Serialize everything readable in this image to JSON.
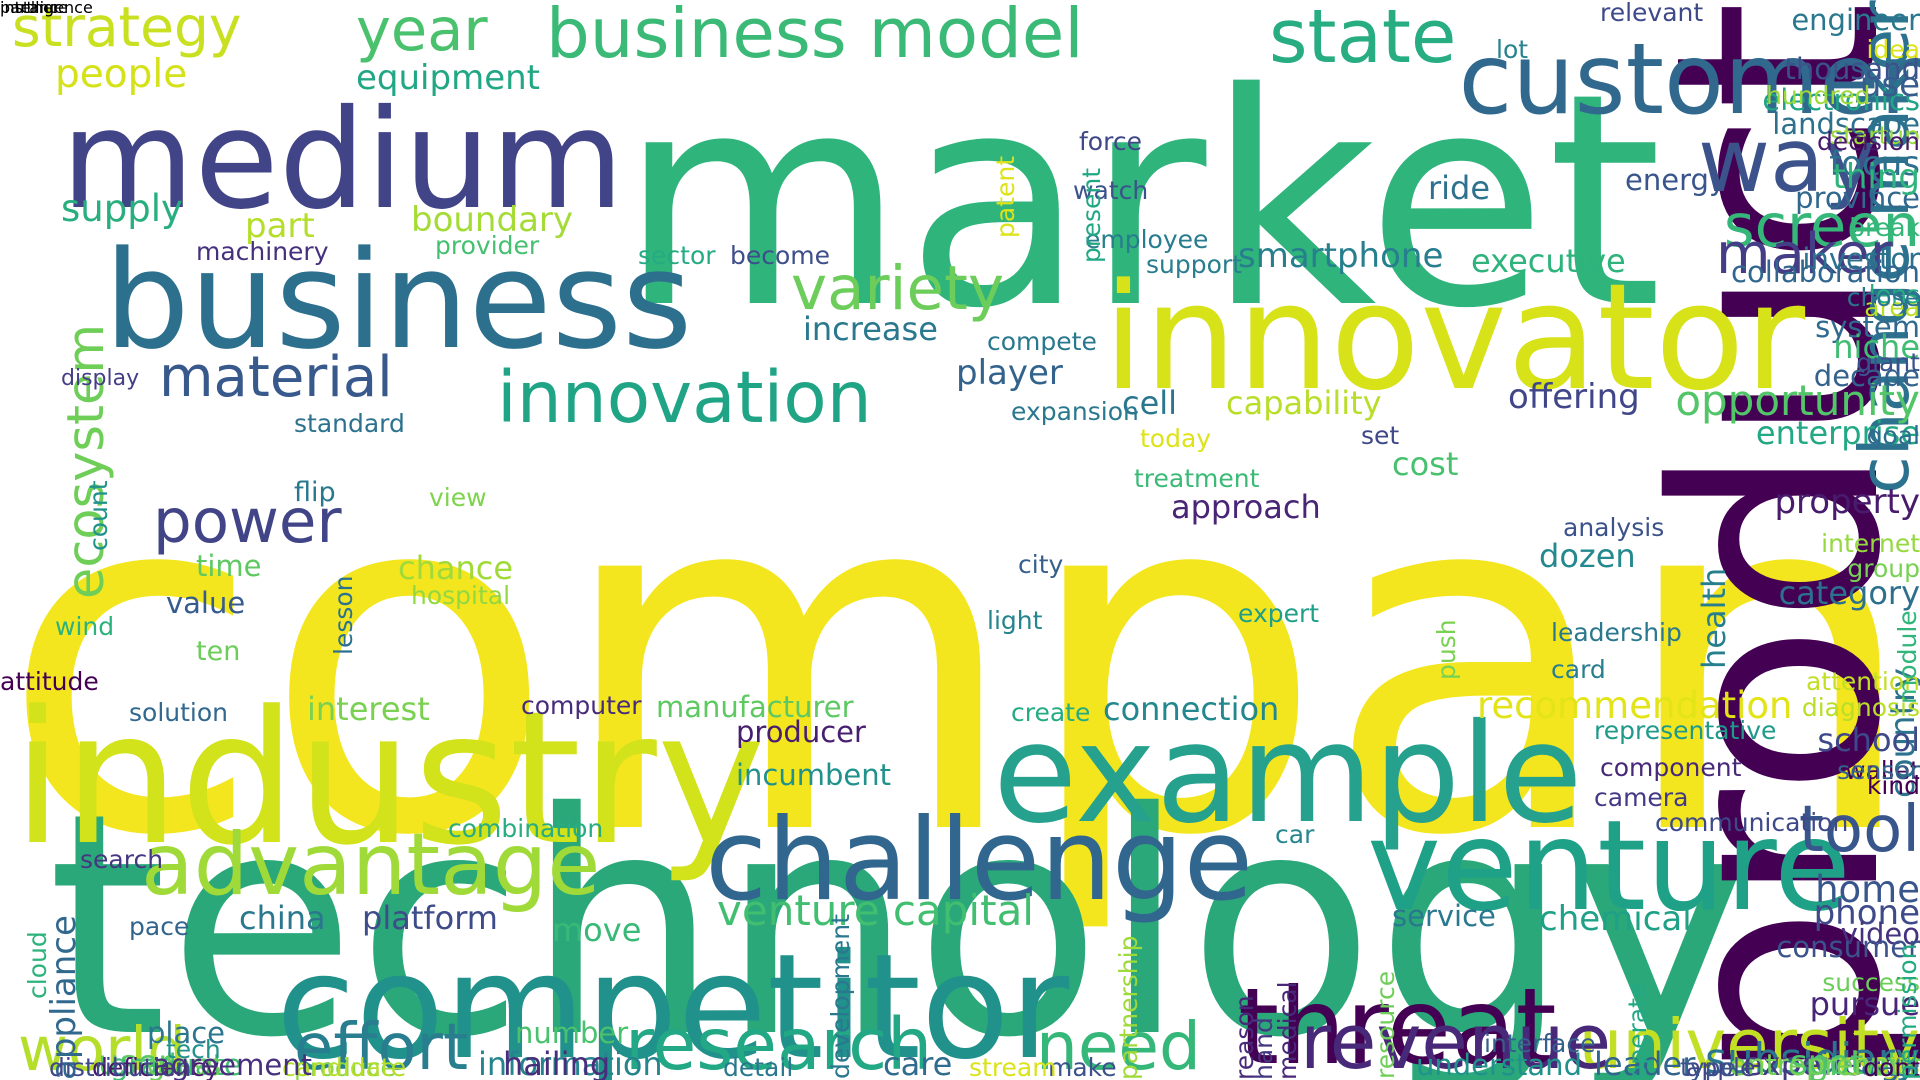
{
  "words": [
    {
      "text": "company",
      "color": "#f4e61e"
    },
    {
      "text": "market",
      "color": "#2fb47c"
    },
    {
      "text": "technology",
      "color": "#2aa879"
    },
    {
      "text": "product",
      "color": "#440154"
    },
    {
      "text": "industry",
      "color": "#d2e21b"
    },
    {
      "text": "innovator",
      "color": "#d8e219"
    },
    {
      "text": "business",
      "color": "#2d708e"
    },
    {
      "text": "medium",
      "color": "#414487"
    },
    {
      "text": "competitor",
      "color": "#21918c"
    },
    {
      "text": "example",
      "color": "#25a18e"
    },
    {
      "text": "venture",
      "color": "#1fa188"
    },
    {
      "text": "challenge",
      "color": "#31668e"
    },
    {
      "text": "customer",
      "color": "#31688e"
    },
    {
      "text": "threat",
      "color": "#440154"
    },
    {
      "text": "advantage",
      "color": "#a0da39"
    },
    {
      "text": "university",
      "color": "#c2df23"
    },
    {
      "text": "revenue",
      "color": "#482878"
    },
    {
      "text": "research",
      "color": "#22a884"
    },
    {
      "text": "change maker",
      "color": "#2c728e"
    },
    {
      "text": "way",
      "color": "#3b528b"
    },
    {
      "text": "innovation",
      "color": "#20a486"
    },
    {
      "text": "state",
      "color": "#27ad81"
    },
    {
      "text": "business model",
      "color": "#3aba76"
    },
    {
      "text": "strategy",
      "color": "#c8e020"
    },
    {
      "text": "year",
      "color": "#4ac16d"
    },
    {
      "text": "variety",
      "color": "#6ccd5a"
    },
    {
      "text": "material",
      "color": "#38598c"
    },
    {
      "text": "ecosystem",
      "color": "#6ece58"
    },
    {
      "text": "effort",
      "color": "#287d8e"
    },
    {
      "text": "world",
      "color": "#b5de2b"
    },
    {
      "text": "need",
      "color": "#35b779"
    },
    {
      "text": "tool",
      "color": "#39568c"
    },
    {
      "text": "screen",
      "color": "#35b779"
    },
    {
      "text": "maker",
      "color": "#433e85"
    },
    {
      "text": "power",
      "color": "#414487"
    },
    {
      "text": "venture capital",
      "color": "#42be71"
    },
    {
      "text": "opportunity",
      "color": "#52c569"
    },
    {
      "text": "subsidiary",
      "color": "#2a768e"
    },
    {
      "text": "people",
      "color": "#d5e21a"
    },
    {
      "text": "equipment",
      "color": "#22a785"
    },
    {
      "text": "supply",
      "color": "#29af7f"
    },
    {
      "text": "part",
      "color": "#b5de2b"
    },
    {
      "text": "boundary",
      "color": "#a5db36"
    },
    {
      "text": "machinery",
      "color": "#46307e"
    },
    {
      "text": "provider",
      "color": "#45bf70"
    },
    {
      "text": "increase",
      "color": "#2a788e"
    },
    {
      "text": "player",
      "color": "#33638d"
    },
    {
      "text": "cell",
      "color": "#2a768e"
    },
    {
      "text": "capability",
      "color": "#b8de29"
    },
    {
      "text": "offering",
      "color": "#404688"
    },
    {
      "text": "smartphone",
      "color": "#277f8e"
    },
    {
      "text": "executive",
      "color": "#2eb37c"
    },
    {
      "text": "focus",
      "color": "#2e6f8e"
    },
    {
      "text": "province",
      "color": "#31688e"
    },
    {
      "text": "energy",
      "color": "#39558c"
    },
    {
      "text": "ride",
      "color": "#2c718e"
    },
    {
      "text": "investor",
      "color": "#2c728e"
    },
    {
      "text": "collaboration",
      "color": "#31678e"
    },
    {
      "text": "landscape",
      "color": "#2d708e"
    },
    {
      "text": "electronics",
      "color": "#20a386"
    },
    {
      "text": "thousand",
      "color": "#3b528b"
    },
    {
      "text": "engineer",
      "color": "#2a788e"
    },
    {
      "text": "thing",
      "color": "#2fb47c"
    },
    {
      "text": "use",
      "color": "#365c8d"
    },
    {
      "text": "system",
      "color": "#306a8e"
    },
    {
      "text": "decade",
      "color": "#33638d"
    },
    {
      "text": "enterprise",
      "color": "#22a884"
    },
    {
      "text": "niche",
      "color": "#40bd72"
    },
    {
      "text": "property",
      "color": "#481b6d"
    },
    {
      "text": "category",
      "color": "#2d708e"
    },
    {
      "text": "approach",
      "color": "#482575"
    },
    {
      "text": "cost",
      "color": "#48c16e"
    },
    {
      "text": "dozen",
      "color": "#23898e"
    },
    {
      "text": "interest",
      "color": "#7ad151"
    },
    {
      "text": "manufacturer",
      "color": "#5ec962"
    },
    {
      "text": "connection",
      "color": "#23888e"
    },
    {
      "text": "recommendation",
      "color": "#e2e418"
    },
    {
      "text": "producer",
      "color": "#481f70"
    },
    {
      "text": "incumbent",
      "color": "#21918c"
    },
    {
      "text": "country",
      "color": "#2c738e"
    },
    {
      "text": "health",
      "color": "#277f8e"
    },
    {
      "text": "school",
      "color": "#3e4989"
    },
    {
      "text": "home",
      "color": "#39568c"
    },
    {
      "text": "phone",
      "color": "#3e4a89"
    },
    {
      "text": "video",
      "color": "#46337f"
    },
    {
      "text": "consumer",
      "color": "#3b528b"
    },
    {
      "text": "chemical",
      "color": "#1fa187"
    },
    {
      "text": "service",
      "color": "#2a788e"
    },
    {
      "text": "china",
      "color": "#2a788e"
    },
    {
      "text": "platform",
      "color": "#3e4c8a"
    },
    {
      "text": "move",
      "color": "#38b977"
    },
    {
      "text": "experience",
      "color": "#453882"
    },
    {
      "text": "pursue",
      "color": "#482576"
    },
    {
      "text": "image",
      "color": "#31668e"
    },
    {
      "text": "growth",
      "color": "#5ec962"
    },
    {
      "text": "thats",
      "color": "#c0df25"
    },
    {
      "text": "spot",
      "color": "#4ec36b"
    },
    {
      "text": "leader",
      "color": "#32658e"
    },
    {
      "text": "entrepreneur",
      "color": "#73d056"
    },
    {
      "text": "understand",
      "color": "#21918c"
    },
    {
      "text": "information",
      "color": "#25858e"
    },
    {
      "text": "hailing",
      "color": "#472d7b"
    },
    {
      "text": "number",
      "color": "#4ac16d"
    },
    {
      "text": "place",
      "color": "#2b758e"
    },
    {
      "text": "care",
      "color": "#2f6c8e"
    },
    {
      "text": "user",
      "color": "#5ac864"
    },
    {
      "text": "graduate",
      "color": "#40bd72"
    },
    {
      "text": "appliance",
      "color": "#31688e"
    },
    {
      "text": "glass",
      "color": "#6ccd5a"
    },
    {
      "text": "tech",
      "color": "#21918c"
    },
    {
      "text": "value",
      "color": "#365c8d"
    },
    {
      "text": "time",
      "color": "#5ec962"
    },
    {
      "text": "chance",
      "color": "#a0da39"
    },
    {
      "text": "hospital",
      "color": "#93d741"
    },
    {
      "text": "display",
      "color": "#433e85"
    },
    {
      "text": "standard",
      "color": "#2c728e"
    },
    {
      "text": "flip",
      "color": "#2a788e"
    },
    {
      "text": "view",
      "color": "#7fd34e"
    },
    {
      "text": "city",
      "color": "#355f8d"
    },
    {
      "text": "light",
      "color": "#25858e"
    },
    {
      "text": "expert",
      "color": "#1f9e89"
    },
    {
      "text": "lesson",
      "color": "#2c728e"
    },
    {
      "text": "wind",
      "color": "#2db27d"
    },
    {
      "text": "ten",
      "color": "#6ccd5a"
    },
    {
      "text": "attitude",
      "color": "#440154"
    },
    {
      "text": "solution",
      "color": "#31688e"
    },
    {
      "text": "computer",
      "color": "#472c7a"
    },
    {
      "text": "create",
      "color": "#25ab82"
    },
    {
      "text": "representative",
      "color": "#1f9a8a"
    },
    {
      "text": "component",
      "color": "#482878"
    },
    {
      "text": "camera",
      "color": "#443983"
    },
    {
      "text": "communication",
      "color": "#3e4989"
    },
    {
      "text": "combination",
      "color": "#27ad81"
    },
    {
      "text": "car",
      "color": "#24878e"
    },
    {
      "text": "search",
      "color": "#453781"
    },
    {
      "text": "pace",
      "color": "#32658e"
    },
    {
      "text": "cloud",
      "color": "#2eb37c"
    },
    {
      "text": "produce",
      "color": "#88d548"
    },
    {
      "text": "candidate",
      "color": "#b5de2b"
    },
    {
      "text": "detail",
      "color": "#2a788e"
    },
    {
      "text": "make",
      "color": "#3b528b"
    },
    {
      "text": "deficiency",
      "color": "#481769"
    },
    {
      "text": "distribution",
      "color": "#3e4989"
    },
    {
      "text": "agreement",
      "color": "#472f7d"
    },
    {
      "text": "stream",
      "color": "#dae319"
    },
    {
      "text": "hand",
      "color": "#453882"
    },
    {
      "text": "apple",
      "color": "#414487"
    },
    {
      "text": "data",
      "color": "#2a788e"
    },
    {
      "text": "force",
      "color": "#3f4788"
    },
    {
      "text": "watch",
      "color": "#3b528b"
    },
    {
      "text": "employee",
      "color": "#287c8e"
    },
    {
      "text": "support",
      "color": "#287d8e"
    },
    {
      "text": "sector",
      "color": "#25ab82"
    },
    {
      "text": "become",
      "color": "#3d4e8a"
    },
    {
      "text": "compete",
      "color": "#2a788e"
    },
    {
      "text": "expansion",
      "color": "#2a788e"
    },
    {
      "text": "today",
      "color": "#dde318"
    },
    {
      "text": "treatment",
      "color": "#3aba76"
    },
    {
      "text": "set",
      "color": "#3f4889"
    },
    {
      "text": "goal",
      "color": "#2f6b8e"
    },
    {
      "text": "area",
      "color": "#bade28"
    },
    {
      "text": "giant",
      "color": "#3b518b"
    },
    {
      "text": "lens",
      "color": "#26ad81"
    },
    {
      "text": "chose",
      "color": "#2b758e"
    },
    {
      "text": "break",
      "color": "#35b779"
    },
    {
      "text": "startup",
      "color": "#9bd93c"
    },
    {
      "text": "decision",
      "color": "#481a6c"
    },
    {
      "text": "idea",
      "color": "#dde318"
    },
    {
      "text": "hundred",
      "color": "#9dd93b"
    },
    {
      "text": "lot",
      "color": "#26828e"
    },
    {
      "text": "relevant",
      "color": "#3e4989"
    },
    {
      "text": "patent",
      "color": "#dde318"
    },
    {
      "text": "present",
      "color": "#22a785"
    },
    {
      "text": "internet",
      "color": "#95d840"
    },
    {
      "text": "group",
      "color": "#77d153"
    },
    {
      "text": "attention",
      "color": "#c2df23"
    },
    {
      "text": "diagnosis",
      "color": "#b8de29"
    },
    {
      "text": "wallet",
      "color": "#440154"
    },
    {
      "text": "kind",
      "color": "#440154"
    },
    {
      "text": "sensor",
      "color": "#33638d"
    },
    {
      "text": "analysis",
      "color": "#3b528b"
    },
    {
      "text": "leadership",
      "color": "#2a788e"
    },
    {
      "text": "card",
      "color": "#287d8e"
    },
    {
      "text": "push",
      "color": "#7ad151"
    },
    {
      "text": "module",
      "color": "#31b57b"
    },
    {
      "text": "count",
      "color": "#21918c"
    },
    {
      "text": "development",
      "color": "#2a788e"
    },
    {
      "text": "reason",
      "color": "#482979"
    },
    {
      "text": "medical",
      "color": "#482878"
    },
    {
      "text": "resource",
      "color": "#6ece58"
    },
    {
      "text": "partnership",
      "color": "#9fda3a"
    },
    {
      "text": "interface",
      "color": "#355f8d"
    },
    {
      "text": "operate",
      "color": "#22a884"
    },
    {
      "text": "type",
      "color": "#3b528b"
    },
    {
      "text": "dont",
      "color": "#440154"
    },
    {
      "text": "success",
      "color": "#6ccd5a"
    },
    {
      "text": "permission",
      "color": "#24aa83"
    },
    {
      "text": "partner",
      "color": "#dde318"
    },
    {
      "text": "instance",
      "color": "#2d708e"
    },
    {
      "text": "intelligence",
      "color": "#2b748e"
    }
  ]
}
